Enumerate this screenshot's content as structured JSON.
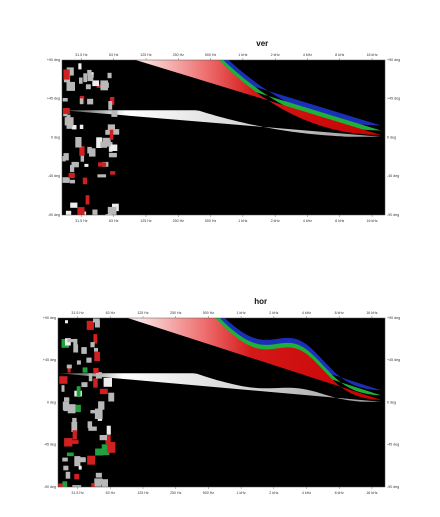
{
  "plots": [
    {
      "title": "ver",
      "x_labels": [
        "31.5 Hz",
        "63 Hz",
        "125 Hz",
        "250 Hz",
        "500 Hz",
        "1 kHz",
        "2 kHz",
        "4 kHz",
        "8 kHz",
        "16 kHz"
      ],
      "y_labels": [
        "+90 deg",
        "+45 deg",
        "0 deg",
        "-45 deg",
        "-90 deg"
      ]
    },
    {
      "title": "hor",
      "x_labels": [
        "31.5 Hz",
        "63 Hz",
        "125 Hz",
        "250 Hz",
        "500 Hz",
        "1 kHz",
        "2 kHz",
        "4 kHz",
        "8 kHz",
        "16 kHz"
      ],
      "y_labels": [
        "+90 deg",
        "+45 deg",
        "0 deg",
        "-45 deg",
        "-90 deg"
      ]
    }
  ]
}
